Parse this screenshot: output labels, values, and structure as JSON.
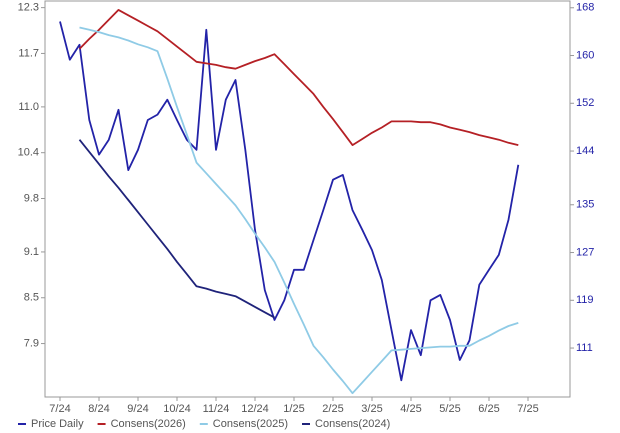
{
  "chart_data": {
    "type": "line",
    "categories": [
      "7/24",
      null,
      null,
      null,
      "8/24",
      null,
      null,
      null,
      "9/24",
      null,
      null,
      null,
      "10/24",
      null,
      null,
      null,
      "11/24",
      null,
      null,
      null,
      "12/24",
      null,
      null,
      null,
      "1/25",
      null,
      null,
      null,
      "2/25",
      null,
      null,
      null,
      "3/25",
      null,
      null,
      null,
      "4/25",
      null,
      null,
      null,
      "5/25",
      null,
      null,
      null,
      "6/25",
      null,
      null,
      null,
      "7/25"
    ],
    "ylim": [
      7.2,
      12.4
    ],
    "yticks": [
      7.9,
      8.5,
      9.1,
      9.8,
      10.4,
      {
        "value": 11,
        "label": "11.0"
      },
      11.7,
      12.3
    ],
    "y2lim": [
      102.8,
      169.3
    ],
    "y2ticks": [
      111,
      119,
      127,
      135,
      144,
      152,
      160,
      168
    ],
    "legend": "bottom",
    "series": [
      {
        "name": "Price Daily",
        "color": "#2323a8",
        "axis": "y2",
        "values": [
          165.7,
          159.3,
          161.8,
          149.2,
          143.4,
          145.9,
          150.9,
          140.8,
          144.2,
          149.2,
          150.1,
          152.6,
          149.2,
          145.9,
          144.2,
          164.3,
          144.2,
          152.6,
          155.9,
          144.2,
          130.8,
          120.7,
          115.7,
          119.0,
          124.1,
          124.1,
          129.1,
          134.1,
          139.2,
          140.0,
          134.1,
          130.8,
          127.4,
          122.4,
          114.0,
          105.6,
          114.0,
          109.8,
          119.0,
          119.9,
          115.7,
          109.0,
          112.3,
          121.6,
          124.1,
          126.6,
          132.5,
          141.7,
          null
        ]
      },
      {
        "name": "Consens(2026)",
        "color": "#b52025",
        "values": [
          null,
          null,
          11.76,
          11.89,
          12.01,
          12.14,
          12.27,
          12.2,
          12.13,
          12.06,
          11.99,
          11.89,
          11.79,
          11.69,
          11.59,
          11.57,
          11.55,
          11.52,
          11.5,
          11.55,
          11.6,
          11.64,
          11.69,
          11.56,
          11.43,
          11.3,
          11.17,
          11.0,
          10.84,
          10.67,
          10.5,
          10.58,
          10.66,
          10.73,
          10.81,
          10.81,
          10.81,
          10.8,
          10.8,
          10.77,
          10.73,
          10.7,
          10.67,
          10.63,
          10.6,
          10.57,
          10.53,
          10.5,
          null
        ]
      },
      {
        "name": "Consens(2025)",
        "color": "#8fcbe6",
        "values": [
          null,
          null,
          12.04,
          12.01,
          11.98,
          11.94,
          11.91,
          11.87,
          11.82,
          11.78,
          11.73,
          11.37,
          11.0,
          10.64,
          10.27,
          10.13,
          9.99,
          9.85,
          9.71,
          9.53,
          9.34,
          9.16,
          8.97,
          8.7,
          8.42,
          8.15,
          7.87,
          7.72,
          7.56,
          7.41,
          7.25,
          7.39,
          7.53,
          7.67,
          7.81,
          7.82,
          7.83,
          7.84,
          7.85,
          7.86,
          7.86,
          7.87,
          7.87,
          7.94,
          8.0,
          8.07,
          8.13,
          8.17,
          null
        ]
      },
      {
        "name": "Consens(2024)",
        "color": "#1f237a",
        "values": [
          null,
          null,
          10.57,
          10.41,
          10.25,
          10.09,
          9.94,
          9.78,
          9.62,
          9.46,
          9.3,
          9.14,
          8.97,
          8.81,
          8.65,
          8.62,
          8.58,
          8.55,
          8.52,
          8.45,
          8.38,
          8.31,
          8.24,
          null,
          null,
          null,
          null,
          null,
          null,
          null,
          null,
          null,
          null,
          null,
          null,
          null,
          null,
          null,
          null,
          null,
          null,
          null,
          null,
          null,
          null,
          null,
          null,
          null,
          null
        ]
      }
    ]
  }
}
